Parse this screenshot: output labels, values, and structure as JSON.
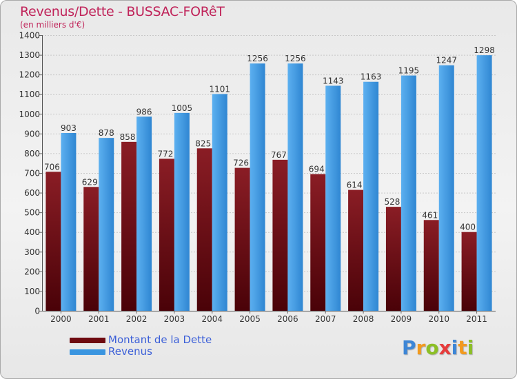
{
  "title": "Revenus/Dette - BUSSAC-FORêT",
  "subtitle": "(en milliers d'€)",
  "logo": {
    "letters": [
      "P",
      "r",
      "o",
      "x",
      "i",
      "t",
      "i"
    ],
    "colors": [
      "#3d86d6",
      "#f29a1f",
      "#8cbf26",
      "#e63c3c",
      "#3d86d6",
      "#f29a1f",
      "#8cbf26"
    ]
  },
  "colors": {
    "dette": "#6e0a10",
    "revenus": "#3a95e0",
    "title": "#c0245a",
    "legend_text": "#3b5fd8"
  },
  "chart_data": {
    "type": "bar",
    "categories": [
      "2000",
      "2001",
      "2002",
      "2003",
      "2004",
      "2005",
      "2006",
      "2007",
      "2008",
      "2009",
      "2010",
      "2011"
    ],
    "series": [
      {
        "name": "Montant de la Dette",
        "values": [
          706,
          629,
          858,
          772,
          825,
          726,
          767,
          694,
          614,
          528,
          461,
          400
        ]
      },
      {
        "name": "Revenus",
        "values": [
          903,
          878,
          986,
          1005,
          1101,
          1256,
          1256,
          1143,
          1163,
          1195,
          1247,
          1298
        ]
      }
    ],
    "yticks": [
      0,
      100,
      200,
      300,
      400,
      500,
      600,
      700,
      800,
      900,
      1000,
      1100,
      1200,
      1300,
      1400
    ],
    "ylim": [
      0,
      1400
    ],
    "grid": true,
    "legend": "bottom-left"
  }
}
